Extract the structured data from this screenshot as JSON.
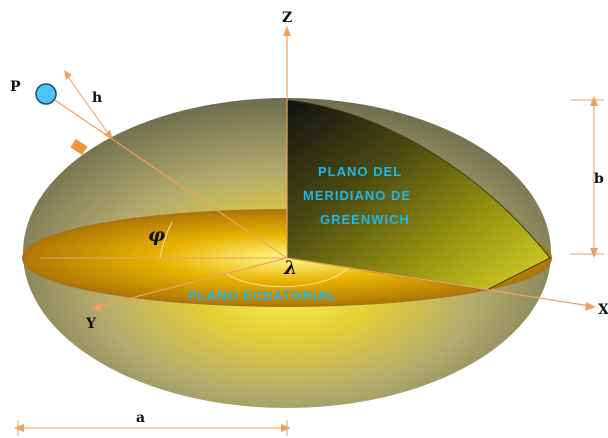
{
  "labels": {
    "z_axis": "Z",
    "x_axis": "X",
    "y_axis": "Y",
    "point": "P",
    "height": "h",
    "semi_major": "a",
    "semi_minor": "b",
    "latitude": "φ",
    "longitude": "λ"
  },
  "planes": {
    "meridian_line1": "PLANO DEL",
    "meridian_line2": "MERIDIANO DE",
    "meridian_line3": "GREENWICH",
    "equatorial": "PLANO ECUATORIAL"
  },
  "colors": {
    "axis": "#f0a060",
    "point": "#4fc3f7",
    "label_text": "#1fb6e8",
    "ellipsoid_outer": "#8a8a66",
    "ellipsoid_core": "#fff35a",
    "equator_edge": "#a87418"
  }
}
